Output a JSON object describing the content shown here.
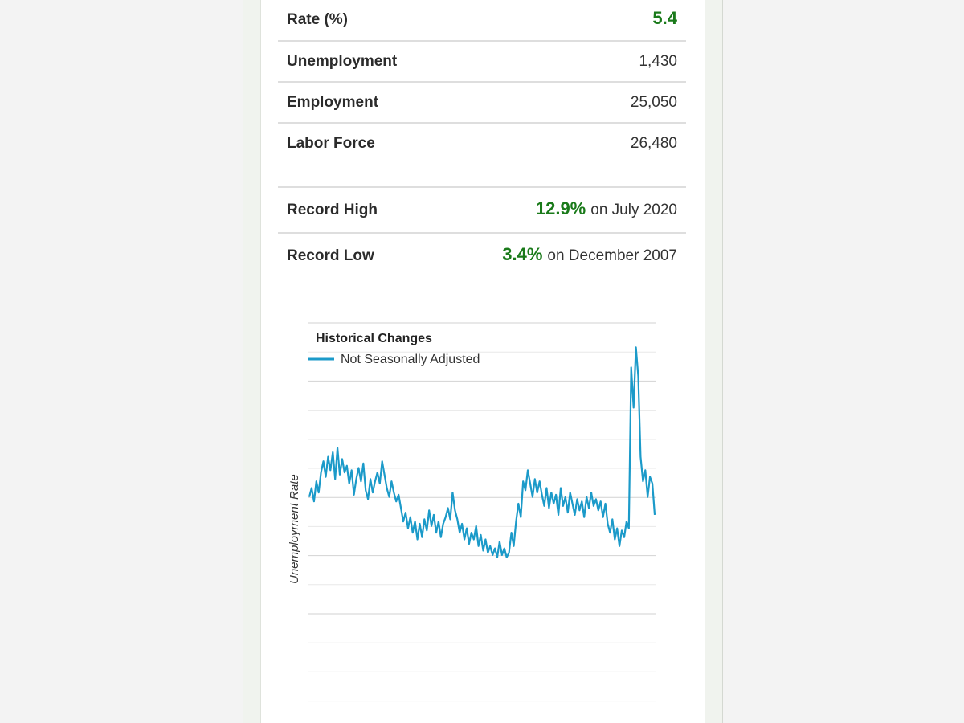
{
  "stats": {
    "rate": {
      "label": "Rate (%)",
      "value": "5.4"
    },
    "unemployment": {
      "label": "Unemployment",
      "value": "1,430"
    },
    "employment": {
      "label": "Employment",
      "value": "25,050"
    },
    "labor_force": {
      "label": "Labor Force",
      "value": "26,480"
    },
    "record_high": {
      "label": "Record High",
      "value": "12.9%",
      "suffix": "on July 2020"
    },
    "record_low": {
      "label": "Record Low",
      "value": "3.4%",
      "suffix": "on December 2007"
    }
  },
  "colors": {
    "accent_green": "#1a7a1a",
    "series_line": "#1b9ac9"
  },
  "chart_data": {
    "type": "line",
    "title": "Historical Changes",
    "ylabel": "Unemployment Rate",
    "legend_placement": "top-left",
    "grid": true,
    "series": [
      {
        "name": "Not Seasonally Adjusted",
        "values": [
          6.2,
          6.6,
          6.0,
          6.9,
          6.4,
          7.3,
          7.8,
          7.1,
          8.0,
          7.4,
          8.2,
          7.0,
          8.4,
          7.2,
          7.9,
          7.3,
          7.6,
          6.8,
          7.4,
          6.3,
          7.0,
          7.5,
          6.9,
          7.7,
          6.5,
          6.1,
          7.0,
          6.4,
          6.9,
          7.3,
          6.8,
          7.8,
          7.2,
          6.6,
          6.2,
          6.9,
          6.4,
          6.0,
          6.3,
          5.7,
          5.1,
          5.5,
          4.8,
          5.3,
          4.6,
          5.1,
          4.3,
          5.0,
          4.4,
          5.2,
          4.7,
          5.6,
          4.9,
          5.4,
          4.6,
          5.1,
          4.4,
          5.0,
          5.3,
          5.7,
          5.2,
          6.4,
          5.6,
          5.2,
          4.6,
          5.0,
          4.3,
          4.8,
          4.1,
          4.6,
          4.3,
          4.9,
          4.0,
          4.5,
          3.8,
          4.3,
          3.7,
          4.0,
          3.6,
          3.9,
          3.5,
          4.2,
          3.6,
          3.9,
          3.5,
          3.7,
          4.6,
          4.0,
          5.1,
          5.9,
          5.3,
          6.9,
          6.5,
          7.4,
          6.8,
          6.2,
          7.0,
          6.4,
          6.9,
          6.3,
          5.8,
          6.6,
          5.7,
          6.4,
          5.9,
          6.3,
          5.4,
          6.6,
          5.8,
          6.2,
          5.5,
          6.4,
          5.9,
          5.4,
          6.1,
          5.6,
          6.0,
          5.3,
          6.2,
          5.7,
          6.4,
          5.8,
          6.1,
          5.6,
          6.0,
          5.3,
          5.9,
          5.0,
          4.6,
          5.2,
          4.3,
          4.8,
          4.0,
          4.7,
          4.4,
          5.1,
          4.8,
          12.0,
          10.2,
          12.9,
          11.6,
          8.0,
          6.9,
          7.4,
          6.2,
          7.1,
          6.8,
          5.4
        ]
      }
    ]
  }
}
